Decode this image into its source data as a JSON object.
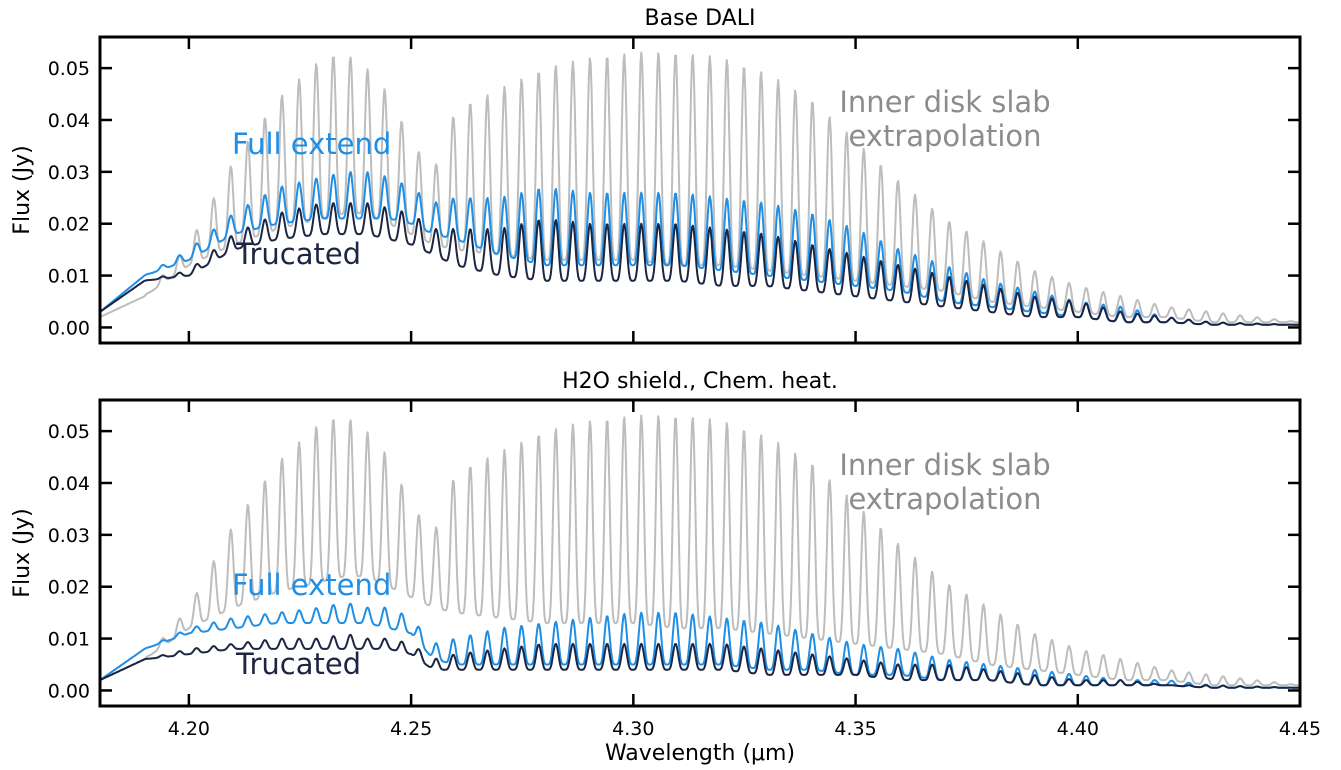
{
  "figure": {
    "xlabel": "Wavelength (μm)",
    "xlim": [
      4.18,
      4.45
    ],
    "xticks": [
      "4.20",
      "4.25",
      "4.30",
      "4.35",
      "4.40",
      "4.45"
    ],
    "ylabel": "Flux (Jy)",
    "ylim": [
      -0.003,
      0.056
    ],
    "yticks": [
      "0.00",
      "0.01",
      "0.02",
      "0.03",
      "0.04",
      "0.05"
    ]
  },
  "colors": {
    "slab": "#bdbdbd",
    "full": "#1f8fe6",
    "trunc": "#1c2541",
    "slab_text": "#8c8c8c"
  },
  "chart_data": [
    {
      "type": "line",
      "title": "Base DALI",
      "xlabel": "",
      "ylabel": "Flux (Jy)",
      "xlim": [
        4.18,
        4.45
      ],
      "ylim": [
        -0.003,
        0.056
      ],
      "annotations": [
        "Inner disk slab\nextrapolation",
        "Full extend",
        "Trucated"
      ],
      "series": [
        {
          "name": "Inner disk slab extrapolation",
          "x": [
            4.18,
            4.19,
            4.2,
            4.21,
            4.22,
            4.23,
            4.235,
            4.24,
            4.245,
            4.25,
            4.255,
            4.26,
            4.27,
            4.28,
            4.29,
            4.3,
            4.31,
            4.32,
            4.33,
            4.34,
            4.35,
            4.36,
            4.37,
            4.38,
            4.39,
            4.4,
            4.41,
            4.42,
            4.43,
            4.45
          ],
          "peaks": [
            0.002,
            0.006,
            0.016,
            0.032,
            0.044,
            0.052,
            0.053,
            0.05,
            0.045,
            0.036,
            0.03,
            0.042,
            0.046,
            0.05,
            0.052,
            0.053,
            0.053,
            0.052,
            0.049,
            0.044,
            0.036,
            0.028,
            0.021,
            0.016,
            0.011,
            0.008,
            0.006,
            0.004,
            0.003,
            0.001
          ],
          "troughs": [
            0.002,
            0.006,
            0.012,
            0.016,
            0.019,
            0.021,
            0.022,
            0.022,
            0.02,
            0.018,
            0.016,
            0.015,
            0.014,
            0.013,
            0.013,
            0.013,
            0.012,
            0.012,
            0.011,
            0.01,
            0.009,
            0.008,
            0.007,
            0.005,
            0.004,
            0.003,
            0.002,
            0.002,
            0.001,
            0.001
          ]
        },
        {
          "name": "Full extend",
          "x": [
            4.18,
            4.19,
            4.2,
            4.21,
            4.22,
            4.23,
            4.235,
            4.24,
            4.245,
            4.25,
            4.255,
            4.26,
            4.27,
            4.28,
            4.29,
            4.3,
            4.31,
            4.32,
            4.33,
            4.34,
            4.35,
            4.36,
            4.37,
            4.38,
            4.39,
            4.4,
            4.41,
            4.42,
            4.43,
            4.45
          ],
          "peaks": [
            0.003,
            0.01,
            0.015,
            0.022,
            0.027,
            0.029,
            0.03,
            0.03,
            0.029,
            0.027,
            0.024,
            0.025,
            0.025,
            0.027,
            0.026,
            0.026,
            0.026,
            0.025,
            0.024,
            0.022,
            0.019,
            0.015,
            0.012,
            0.009,
            0.007,
            0.005,
            0.004,
            0.002,
            0.001,
            0.0005
          ],
          "troughs": [
            0.003,
            0.01,
            0.013,
            0.018,
            0.02,
            0.021,
            0.021,
            0.021,
            0.021,
            0.02,
            0.018,
            0.017,
            0.014,
            0.012,
            0.012,
            0.012,
            0.012,
            0.011,
            0.01,
            0.009,
            0.008,
            0.007,
            0.005,
            0.004,
            0.003,
            0.002,
            0.001,
            0.001,
            0.0005,
            0.0005
          ]
        },
        {
          "name": "Trucated",
          "x": [
            4.18,
            4.19,
            4.2,
            4.21,
            4.22,
            4.23,
            4.235,
            4.24,
            4.245,
            4.25,
            4.255,
            4.26,
            4.27,
            4.28,
            4.29,
            4.3,
            4.31,
            4.32,
            4.33,
            4.34,
            4.35,
            4.36,
            4.37,
            4.38,
            4.39,
            4.4,
            4.41,
            4.42,
            4.43,
            4.45
          ],
          "peaks": [
            0.003,
            0.009,
            0.011,
            0.018,
            0.022,
            0.024,
            0.024,
            0.024,
            0.023,
            0.022,
            0.019,
            0.019,
            0.019,
            0.021,
            0.02,
            0.02,
            0.02,
            0.019,
            0.018,
            0.016,
            0.014,
            0.012,
            0.01,
            0.008,
            0.006,
            0.005,
            0.003,
            0.002,
            0.001,
            0.0005
          ],
          "troughs": [
            0.003,
            0.009,
            0.01,
            0.015,
            0.017,
            0.018,
            0.018,
            0.018,
            0.017,
            0.016,
            0.014,
            0.012,
            0.01,
            0.009,
            0.009,
            0.009,
            0.009,
            0.008,
            0.008,
            0.007,
            0.006,
            0.005,
            0.004,
            0.003,
            0.002,
            0.002,
            0.001,
            0.001,
            0.0005,
            0.0005
          ]
        }
      ]
    },
    {
      "type": "line",
      "title": "H2O shield., Chem. heat.",
      "xlabel": "Wavelength (μm)",
      "ylabel": "Flux (Jy)",
      "xlim": [
        4.18,
        4.45
      ],
      "ylim": [
        -0.003,
        0.056
      ],
      "annotations": [
        "Inner disk slab\nextrapolation",
        "Full extend",
        "Trucated"
      ],
      "series": [
        {
          "name": "Inner disk slab extrapolation",
          "x": [
            4.18,
            4.19,
            4.2,
            4.21,
            4.22,
            4.23,
            4.235,
            4.24,
            4.245,
            4.25,
            4.255,
            4.26,
            4.27,
            4.28,
            4.29,
            4.3,
            4.31,
            4.32,
            4.33,
            4.34,
            4.35,
            4.36,
            4.37,
            4.38,
            4.39,
            4.4,
            4.41,
            4.42,
            4.43,
            4.45
          ],
          "peaks": [
            0.002,
            0.006,
            0.016,
            0.032,
            0.044,
            0.052,
            0.053,
            0.05,
            0.045,
            0.036,
            0.03,
            0.042,
            0.046,
            0.05,
            0.052,
            0.053,
            0.053,
            0.052,
            0.049,
            0.044,
            0.036,
            0.028,
            0.021,
            0.016,
            0.011,
            0.008,
            0.006,
            0.004,
            0.003,
            0.001
          ],
          "troughs": [
            0.002,
            0.006,
            0.012,
            0.016,
            0.019,
            0.021,
            0.022,
            0.022,
            0.02,
            0.018,
            0.016,
            0.015,
            0.014,
            0.013,
            0.013,
            0.013,
            0.012,
            0.012,
            0.011,
            0.01,
            0.009,
            0.008,
            0.007,
            0.005,
            0.004,
            0.003,
            0.002,
            0.002,
            0.001,
            0.001
          ]
        },
        {
          "name": "Full extend",
          "x": [
            4.18,
            4.19,
            4.2,
            4.21,
            4.22,
            4.23,
            4.235,
            4.24,
            4.245,
            4.25,
            4.255,
            4.26,
            4.27,
            4.28,
            4.29,
            4.3,
            4.31,
            4.32,
            4.33,
            4.34,
            4.35,
            4.36,
            4.37,
            4.38,
            4.39,
            4.4,
            4.41,
            4.42,
            4.43,
            4.45
          ],
          "peaks": [
            0.002,
            0.008,
            0.012,
            0.014,
            0.015,
            0.016,
            0.017,
            0.016,
            0.016,
            0.014,
            0.009,
            0.01,
            0.012,
            0.013,
            0.014,
            0.015,
            0.015,
            0.014,
            0.013,
            0.011,
            0.009,
            0.008,
            0.006,
            0.005,
            0.004,
            0.003,
            0.002,
            0.002,
            0.001,
            0.0005
          ],
          "troughs": [
            0.002,
            0.008,
            0.011,
            0.012,
            0.013,
            0.013,
            0.013,
            0.013,
            0.012,
            0.011,
            0.006,
            0.005,
            0.005,
            0.005,
            0.005,
            0.005,
            0.005,
            0.005,
            0.004,
            0.004,
            0.003,
            0.003,
            0.002,
            0.002,
            0.001,
            0.001,
            0.001,
            0.001,
            0.0005,
            0.0005
          ]
        },
        {
          "name": "Trucated",
          "x": [
            4.18,
            4.19,
            4.2,
            4.21,
            4.22,
            4.23,
            4.235,
            4.24,
            4.245,
            4.25,
            4.255,
            4.26,
            4.27,
            4.28,
            4.29,
            4.3,
            4.31,
            4.32,
            4.33,
            4.34,
            4.35,
            4.36,
            4.37,
            4.38,
            4.39,
            4.4,
            4.41,
            4.42,
            4.43,
            4.45
          ],
          "peaks": [
            0.002,
            0.006,
            0.008,
            0.009,
            0.01,
            0.01,
            0.011,
            0.01,
            0.01,
            0.009,
            0.006,
            0.007,
            0.008,
            0.009,
            0.009,
            0.009,
            0.009,
            0.009,
            0.008,
            0.007,
            0.006,
            0.005,
            0.005,
            0.004,
            0.003,
            0.002,
            0.002,
            0.001,
            0.001,
            0.0005
          ],
          "troughs": [
            0.002,
            0.006,
            0.007,
            0.008,
            0.008,
            0.008,
            0.008,
            0.008,
            0.008,
            0.007,
            0.004,
            0.004,
            0.004,
            0.004,
            0.004,
            0.004,
            0.004,
            0.004,
            0.003,
            0.003,
            0.003,
            0.002,
            0.002,
            0.002,
            0.001,
            0.001,
            0.001,
            0.001,
            0.0005,
            0.0005
          ]
        }
      ]
    }
  ]
}
